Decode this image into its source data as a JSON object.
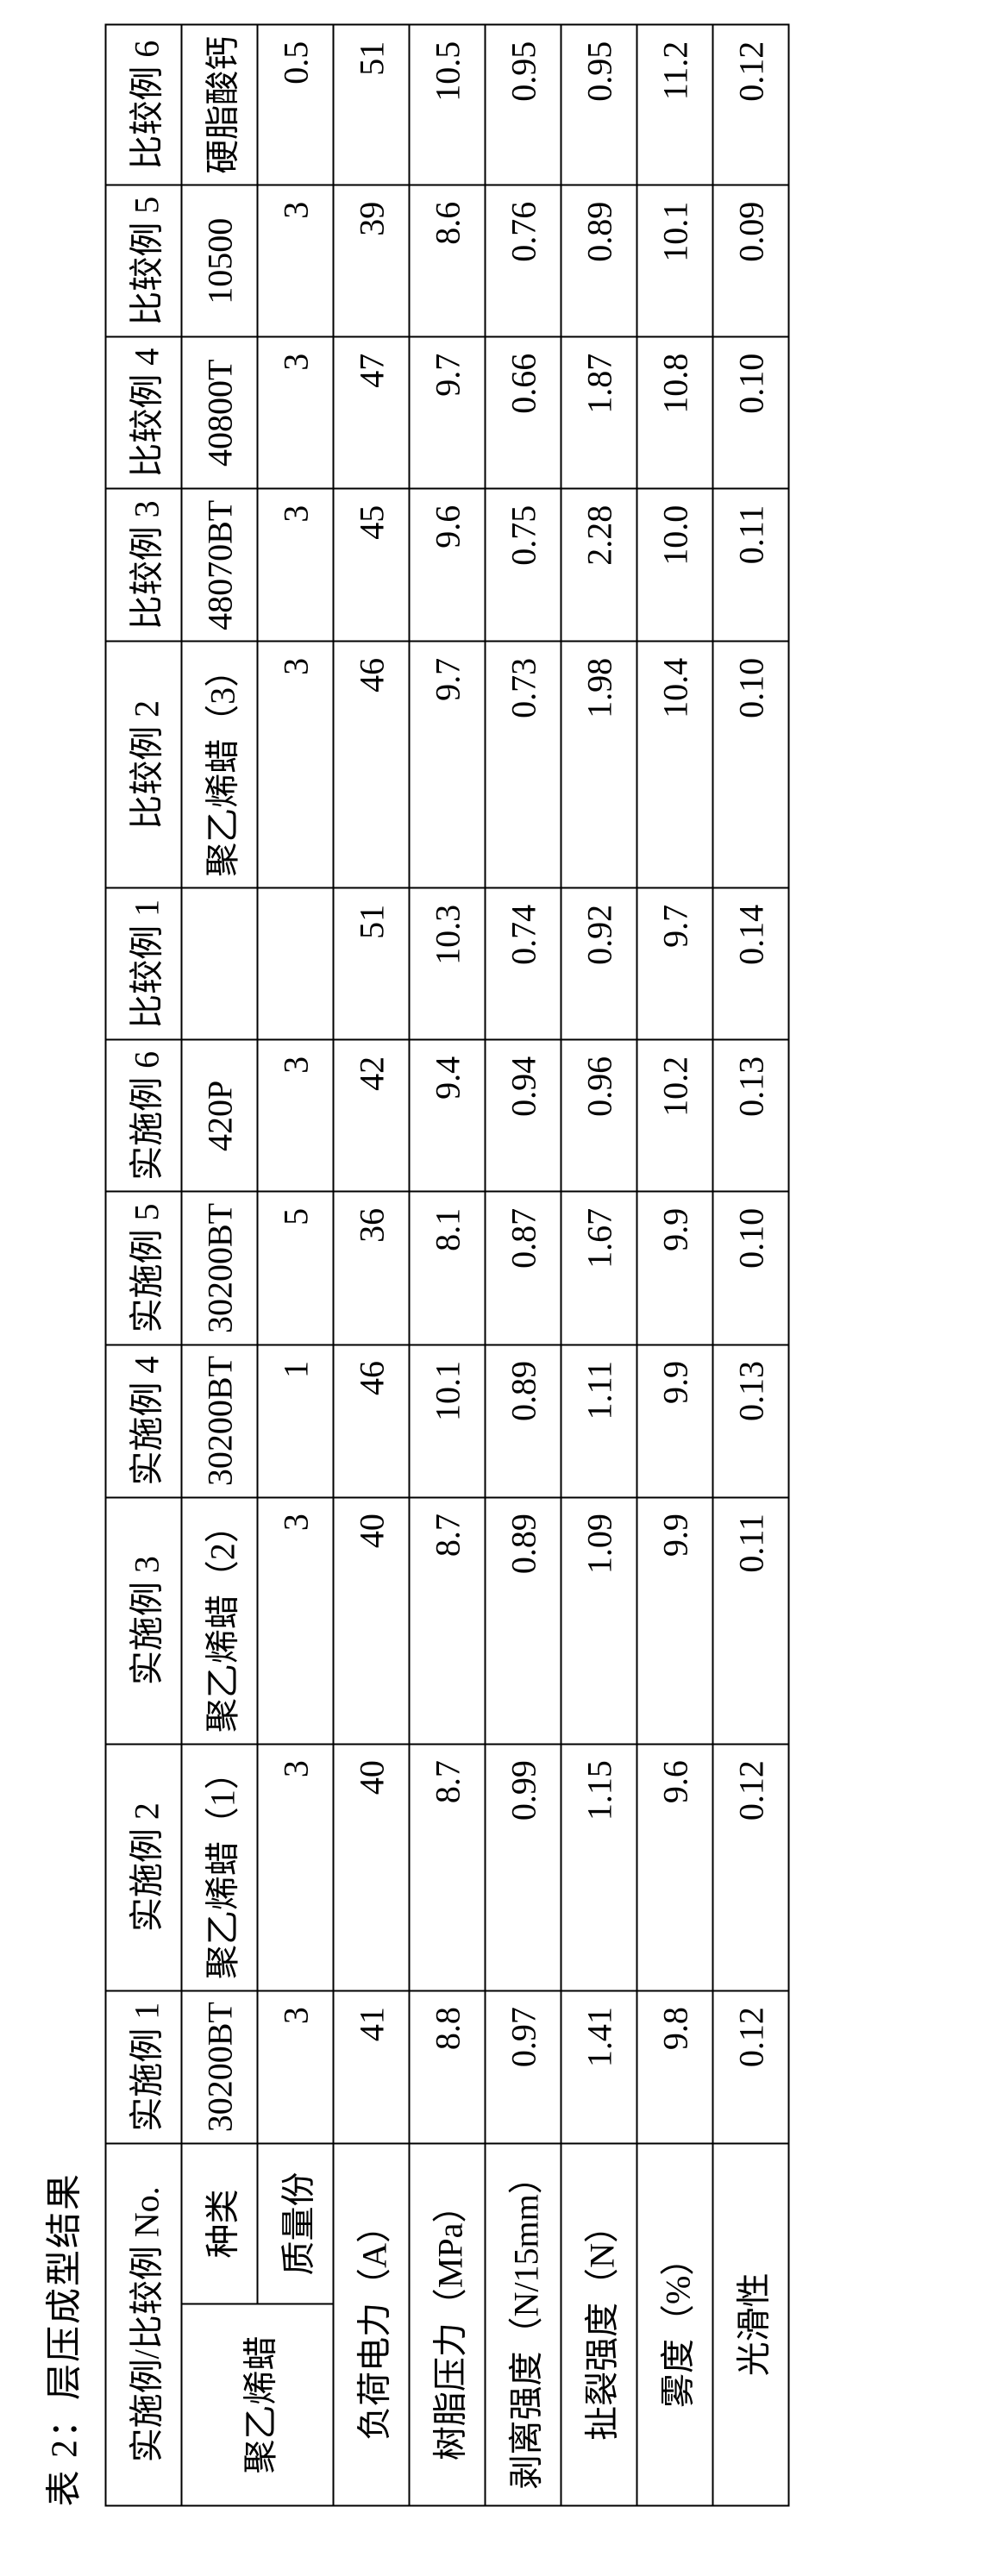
{
  "caption": "表 2：层压成型结果",
  "headers": {
    "rowhead": "实施例/比较例 No.",
    "cols": [
      "实施例 1",
      "实施例 2",
      "实施例 3",
      "实施例 4",
      "实施例 5",
      "实施例 6",
      "比较例 1",
      "比较例 2",
      "比较例 3",
      "比较例 4",
      "比较例 5",
      "比较例 6"
    ]
  },
  "group": {
    "label": "聚乙烯蜡",
    "sub1": "种类",
    "sub2": "质量份"
  },
  "kind_row": [
    "30200BT",
    "聚乙烯蜡（1）",
    "聚乙烯蜡（2）",
    "30200BT",
    "30200BT",
    "420P",
    "",
    "聚乙烯蜡（3）",
    "48070BT",
    "40800T",
    "10500",
    "硬脂酸钙"
  ],
  "mass_row": [
    "3",
    "3",
    "3",
    "1",
    "5",
    "3",
    "",
    "3",
    "3",
    "3",
    "3",
    "0.5"
  ],
  "metrics": [
    {
      "label": "负荷电力（A）",
      "vals": [
        "41",
        "40",
        "40",
        "46",
        "36",
        "42",
        "51",
        "46",
        "45",
        "47",
        "39",
        "51"
      ]
    },
    {
      "label": "树脂压力（MPa）",
      "vals": [
        "8.8",
        "8.7",
        "8.7",
        "10.1",
        "8.1",
        "9.4",
        "10.3",
        "9.7",
        "9.6",
        "9.7",
        "8.6",
        "10.5"
      ]
    },
    {
      "label": "剥离强度（N/15mm）",
      "vals": [
        "0.97",
        "0.99",
        "0.89",
        "0.89",
        "0.87",
        "0.94",
        "0.74",
        "0.73",
        "0.75",
        "0.66",
        "0.76",
        "0.95"
      ]
    },
    {
      "label": "扯裂强度（N）",
      "vals": [
        "1.41",
        "1.15",
        "1.09",
        "1.11",
        "1.67",
        "0.96",
        "0.92",
        "1.98",
        "2.28",
        "1.87",
        "0.89",
        "0.95"
      ]
    },
    {
      "label": "雾度（%）",
      "vals": [
        "9.8",
        "9.6",
        "9.9",
        "9.9",
        "9.9",
        "10.2",
        "9.7",
        "10.4",
        "10.0",
        "10.8",
        "10.1",
        "11.2"
      ]
    },
    {
      "label": "光滑性",
      "vals": [
        "0.12",
        "0.12",
        "0.11",
        "0.13",
        "0.10",
        "0.13",
        "0.14",
        "0.10",
        "0.11",
        "0.10",
        "0.09",
        "0.12"
      ]
    }
  ]
}
